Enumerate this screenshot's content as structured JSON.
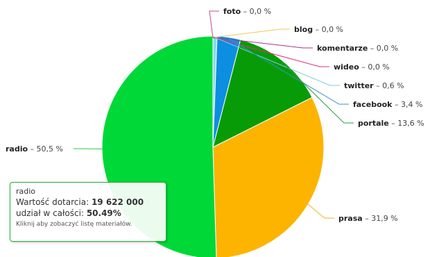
{
  "chart_data": {
    "type": "pie",
    "slices": [
      {
        "name": "foto",
        "label": "foto",
        "value_text": "0,0 %",
        "value": 0.0,
        "color": "#6b6bbd",
        "line_color": "#c54a8a"
      },
      {
        "name": "blog",
        "label": "blog",
        "value_text": "0,0 %",
        "value": 0.0,
        "color": "#f0d070",
        "line_color": "#f0c850"
      },
      {
        "name": "komentarze",
        "label": "komentarze",
        "value_text": "0,0 %",
        "value": 0.0,
        "color": "#b03088",
        "line_color": "#b03088"
      },
      {
        "name": "wideo",
        "label": "wideo",
        "value_text": "0,0 %",
        "value": 0.0,
        "color": "#e0307a",
        "line_color": "#e0307a"
      },
      {
        "name": "twitter",
        "label": "twitter",
        "value_text": "0,6 %",
        "value": 0.6,
        "color": "#8fd6f0",
        "line_color": "#7fcbe8"
      },
      {
        "name": "facebook",
        "label": "facebook",
        "value_text": "3,4 %",
        "value": 3.4,
        "color": "#0c8fe0",
        "line_color": "#3a8fc8"
      },
      {
        "name": "portale",
        "label": "portale",
        "value_text": "13,6 %",
        "value": 13.6,
        "color": "#079c07",
        "line_color": "#2e9c3a"
      },
      {
        "name": "prasa",
        "label": "prasa",
        "value_text": "31,9 %",
        "value": 31.9,
        "color": "#fdb400",
        "line_color": "#f0b020"
      },
      {
        "name": "radio",
        "label": "radio",
        "value_text": "50,5 %",
        "value": 50.5,
        "color": "#00d837",
        "line_color": "#2ec84a"
      }
    ]
  },
  "tooltip": {
    "title": "radio",
    "reach_label": "Wartość dotarcia:",
    "reach_value": "19 622 000",
    "share_label": "udział w całości:",
    "share_value": "50.49%",
    "hint": "Kliknij aby zobaczyć listę materiałów."
  }
}
